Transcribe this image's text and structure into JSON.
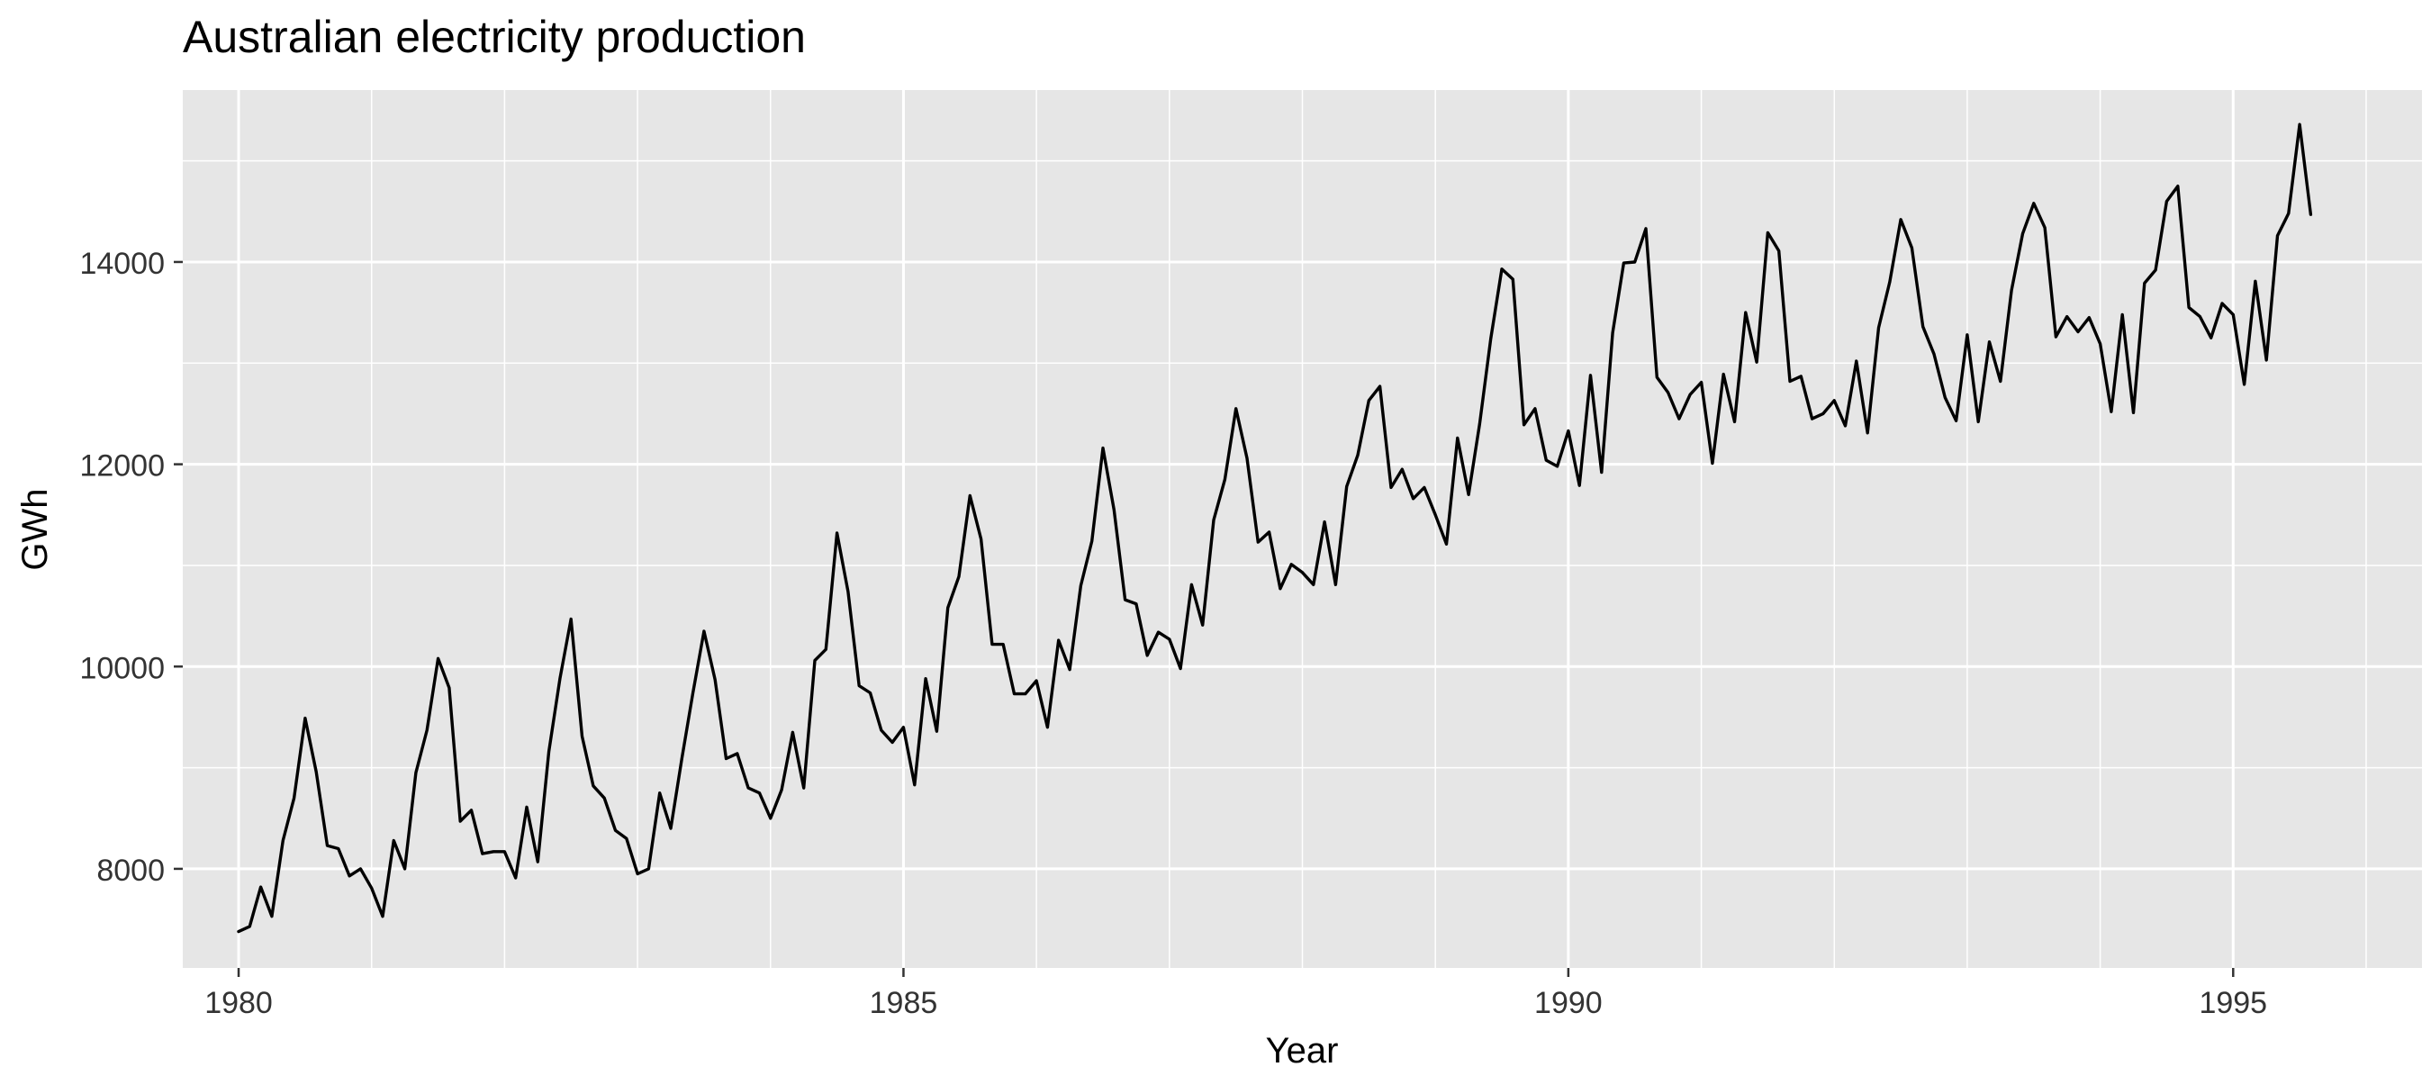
{
  "chart_data": {
    "type": "line",
    "title": "Australian electricity production",
    "xlabel": "Year",
    "ylabel": "GWh",
    "x_start_decimal_year": 1980.0,
    "x_step_years": 0.0833333,
    "xlim": [
      1979.58,
      1996.42
    ],
    "ylim": [
      7020,
      15700
    ],
    "x_ticks": [
      1980,
      1985,
      1990,
      1995
    ],
    "x_tick_labels": [
      "1980",
      "1985",
      "1990",
      "1995"
    ],
    "y_ticks": [
      8000,
      10000,
      12000,
      14000
    ],
    "y_tick_labels": [
      "8000",
      "10000",
      "12000",
      "14000"
    ],
    "y_minor_ticks": [
      9000,
      11000,
      13000,
      15000
    ],
    "x_minor_ticks": [
      1981,
      1982,
      1983,
      1984,
      1986,
      1987,
      1988,
      1989,
      1991,
      1992,
      1993,
      1994,
      1996
    ],
    "grid": true,
    "colors": {
      "panel_background": "#e6e6e6",
      "grid_line": "#ffffff",
      "series_line": "#000000",
      "text": "#333333",
      "title_text": "#000000"
    },
    "series": [
      {
        "values": [
          7380,
          7430,
          7820,
          7530,
          8280,
          8700,
          9490,
          8960,
          8230,
          8200,
          7930,
          8000,
          7810,
          7530,
          8280,
          8000,
          8950,
          9370,
          10080,
          9790,
          8470,
          8580,
          8150,
          8170,
          8170,
          7910,
          8610,
          8070,
          9160,
          9880,
          10470,
          9310,
          8820,
          8700,
          8380,
          8300,
          7950,
          8000,
          8750,
          8400,
          9090,
          9740,
          10350,
          9870,
          9090,
          9140,
          8800,
          8750,
          8500,
          8780,
          9350,
          8800,
          10060,
          10170,
          11320,
          10740,
          9810,
          9740,
          9370,
          9250,
          9400,
          8830,
          9880,
          9360,
          10580,
          10890,
          11690,
          11260,
          10220,
          10220,
          9730,
          9730,
          9860,
          9400,
          10260,
          9970,
          10800,
          11240,
          12160,
          11550,
          10660,
          10620,
          10110,
          10340,
          10270,
          9980,
          10810,
          10410,
          11450,
          11850,
          12550,
          12060,
          11230,
          11330,
          10770,
          11010,
          10930,
          10810,
          11430,
          10810,
          11780,
          12090,
          12630,
          12770,
          11770,
          11950,
          11660,
          11770,
          11500,
          11210,
          12260,
          11700,
          12400,
          13240,
          13930,
          13830,
          12390,
          12550,
          12040,
          11980,
          12330,
          11790,
          12880,
          11920,
          13300,
          13990,
          14000,
          14330,
          12860,
          12710,
          12450,
          12690,
          12810,
          12010,
          12890,
          12420,
          13500,
          13010,
          14290,
          14110,
          12820,
          12870,
          12450,
          12500,
          12630,
          12380,
          13020,
          12310,
          13350,
          13800,
          14420,
          14140,
          13360,
          13090,
          12660,
          12430,
          13280,
          12420,
          13210,
          12820,
          13720,
          14280,
          14580,
          14340,
          13260,
          13460,
          13310,
          13450,
          13190,
          12520,
          13480,
          12510,
          13790,
          13920,
          14600,
          14750,
          13550,
          13460,
          13250,
          13590,
          13480,
          12790,
          13810,
          13030,
          14260,
          14480,
          15360,
          14470
        ]
      }
    ]
  }
}
